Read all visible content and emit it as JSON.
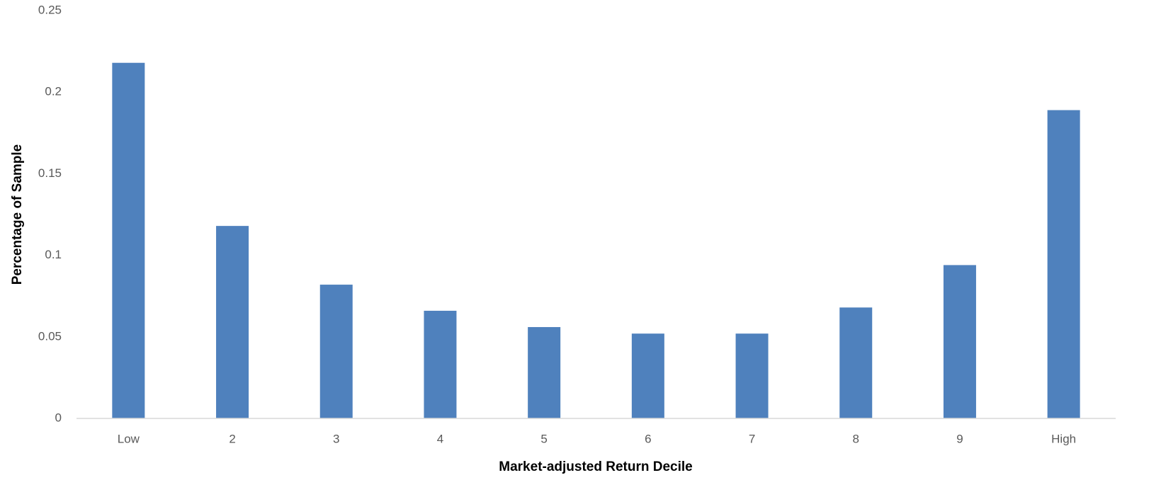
{
  "chart_data": {
    "type": "bar",
    "x_label": "Market-adjusted Return Decile",
    "y_label": "Percentage of Sample",
    "categories": [
      "Low",
      "2",
      "3",
      "4",
      "5",
      "6",
      "7",
      "8",
      "9",
      "High"
    ],
    "values": [
      0.218,
      0.118,
      0.082,
      0.066,
      0.056,
      0.052,
      0.052,
      0.068,
      0.094,
      0.189
    ],
    "color": "#4f81bd",
    "ylim": [
      0,
      0.25
    ],
    "yticks": [
      0,
      0.05,
      0.1,
      0.15,
      0.2,
      0.25
    ],
    "grid": false
  }
}
